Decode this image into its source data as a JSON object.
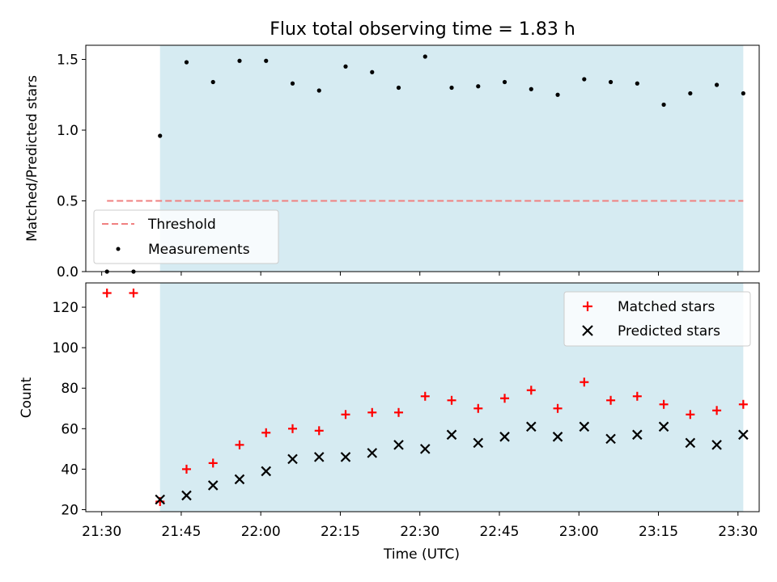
{
  "title": "Flux total observing time = 1.83 h",
  "colors": {
    "shade": "#add8e6",
    "threshold": "#f08080",
    "measurement": "#000000",
    "matched": "#ff0000",
    "predicted": "#000000"
  },
  "chart_data": [
    {
      "type": "scatter",
      "ylabel": "Matched/Predicted stars",
      "xlabel": "",
      "ylim": [
        0,
        1.6
      ],
      "yticks": [
        "0.0",
        "0.5",
        "1.0",
        "1.5"
      ],
      "x_range": [
        "21:27",
        "23:34"
      ],
      "shaded_interval": [
        "21:41",
        "23:31"
      ],
      "legend": {
        "placement": "lower-left",
        "entries": [
          "Threshold",
          "Measurements"
        ]
      },
      "threshold": {
        "name": "Threshold",
        "value": 0.5,
        "x": [
          "21:31",
          "23:31"
        ]
      },
      "series": [
        {
          "name": "Measurements",
          "x": [
            "21:31",
            "21:36",
            "21:41",
            "21:46",
            "21:51",
            "21:56",
            "22:01",
            "22:06",
            "22:11",
            "22:16",
            "22:21",
            "22:26",
            "22:31",
            "22:36",
            "22:41",
            "22:46",
            "22:51",
            "22:56",
            "23:01",
            "23:06",
            "23:11",
            "23:16",
            "23:21",
            "23:26",
            "23:31"
          ],
          "values": [
            0.0,
            0.0,
            0.96,
            1.48,
            1.34,
            1.49,
            1.49,
            1.33,
            1.28,
            1.45,
            1.41,
            1.3,
            1.52,
            1.3,
            1.31,
            1.34,
            1.29,
            1.25,
            1.36,
            1.34,
            1.33,
            1.18,
            1.26,
            1.32,
            1.26
          ]
        }
      ]
    },
    {
      "type": "scatter",
      "ylabel": "Count",
      "xlabel": "Time (UTC)",
      "ylim": [
        19,
        132
      ],
      "yticks": [
        "20",
        "40",
        "60",
        "80",
        "100",
        "120"
      ],
      "xticks": [
        "21:30",
        "21:45",
        "22:00",
        "22:15",
        "22:30",
        "22:45",
        "23:00",
        "23:15",
        "23:30"
      ],
      "x_range": [
        "21:27",
        "23:34"
      ],
      "shaded_interval": [
        "21:41",
        "23:31"
      ],
      "legend": {
        "placement": "top-right",
        "entries": [
          "Matched stars",
          "Predicted stars"
        ]
      },
      "series": [
        {
          "name": "Matched stars",
          "x": [
            "21:31",
            "21:36",
            "21:41",
            "21:46",
            "21:51",
            "21:56",
            "22:01",
            "22:06",
            "22:11",
            "22:16",
            "22:21",
            "22:26",
            "22:31",
            "22:36",
            "22:41",
            "22:46",
            "22:51",
            "22:56",
            "23:01",
            "23:06",
            "23:11",
            "23:16",
            "23:21",
            "23:26",
            "23:31"
          ],
          "values": [
            127,
            127,
            24,
            40,
            43,
            52,
            58,
            60,
            59,
            67,
            68,
            68,
            76,
            74,
            70,
            75,
            79,
            70,
            83,
            74,
            76,
            72,
            67,
            69,
            72
          ]
        },
        {
          "name": "Predicted stars",
          "x": [
            "21:41",
            "21:46",
            "21:51",
            "21:56",
            "22:01",
            "22:06",
            "22:11",
            "22:16",
            "22:21",
            "22:26",
            "22:31",
            "22:36",
            "22:41",
            "22:46",
            "22:51",
            "22:56",
            "23:01",
            "23:06",
            "23:11",
            "23:16",
            "23:21",
            "23:26",
            "23:31"
          ],
          "values": [
            25,
            27,
            32,
            35,
            39,
            45,
            46,
            46,
            48,
            52,
            50,
            57,
            53,
            56,
            61,
            56,
            61,
            55,
            57,
            61,
            53,
            52,
            57
          ]
        }
      ]
    }
  ]
}
